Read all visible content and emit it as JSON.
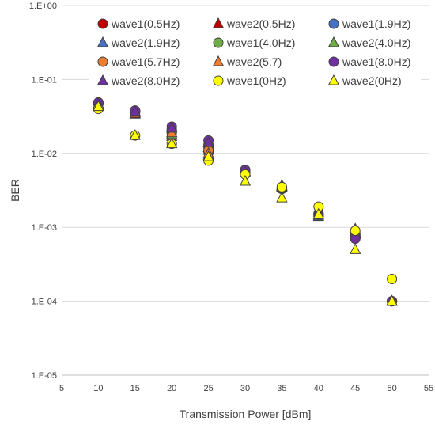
{
  "chart_data": {
    "type": "scatter",
    "title": "",
    "xlabel": "Transmission Power [dBm]",
    "ylabel": "BER",
    "xlim": [
      5,
      55
    ],
    "xticks": [
      5,
      10,
      15,
      20,
      25,
      30,
      35,
      40,
      45,
      50,
      55
    ],
    "ylim": [
      1e-05,
      1
    ],
    "yscale": "log",
    "ytick_values": [
      1,
      0.1,
      0.01,
      0.001,
      0.0001,
      1e-05
    ],
    "ytick_labels": [
      "1.E+00",
      "1.E-01",
      "1.E-02",
      "1.E-03",
      "1.E-04",
      "1.E-05"
    ],
    "grid": {
      "horizontal": true,
      "vertical": false
    },
    "legend_position": "top",
    "series": [
      {
        "name": "wave1(0.5Hz)",
        "marker": "circle",
        "color": "#c00000",
        "x": [
          10,
          15,
          20,
          25,
          30,
          35,
          40,
          45,
          50
        ],
        "y": [
          0.048,
          0.036,
          0.021,
          0.0105,
          0.0058,
          0.0034,
          0.00155,
          0.00075,
          0.0001
        ]
      },
      {
        "name": "wave2(0.5Hz)",
        "marker": "triangle",
        "color": "#c00000",
        "x": [
          10,
          15,
          20,
          25,
          30,
          35,
          40,
          45,
          50
        ],
        "y": [
          0.045,
          0.034,
          0.017,
          0.0095,
          0.0055,
          0.0036,
          0.0015,
          0.0008,
          0.0001
        ]
      },
      {
        "name": "wave1(1.9Hz)",
        "marker": "circle",
        "color": "#4472c4",
        "x": [
          10,
          15,
          20,
          25,
          30,
          35,
          40,
          45,
          50
        ],
        "y": [
          0.047,
          0.037,
          0.02,
          0.012,
          0.0057,
          0.0033,
          0.0015,
          0.0008,
          0.0001
        ]
      },
      {
        "name": "wave2(1.9Hz)",
        "marker": "triangle",
        "color": "#4472c4",
        "x": [
          10,
          15,
          20,
          25,
          30,
          35,
          40,
          45,
          50
        ],
        "y": [
          0.046,
          0.036,
          0.019,
          0.011,
          0.0056,
          0.0035,
          0.0014,
          0.00085,
          0.0001
        ]
      },
      {
        "name": "wave1(4.0Hz)",
        "marker": "circle",
        "color": "#70ad47",
        "x": [
          10,
          15,
          20,
          25,
          30,
          35,
          40,
          45,
          50
        ],
        "y": [
          0.047,
          0.037,
          0.019,
          0.013,
          0.0058,
          0.0034,
          0.0015,
          0.00078,
          0.0001
        ]
      },
      {
        "name": "wave2(4.0Hz)",
        "marker": "triangle",
        "color": "#70ad47",
        "x": [
          10,
          15,
          20,
          25,
          30,
          35,
          40,
          45,
          50
        ],
        "y": [
          0.046,
          0.036,
          0.018,
          0.012,
          0.0056,
          0.0035,
          0.00145,
          0.00082,
          0.0001
        ]
      },
      {
        "name": "wave1(5.7Hz)",
        "marker": "circle",
        "color": "#ed7d31",
        "x": [
          10,
          15,
          20,
          25,
          30,
          35,
          40,
          45,
          50
        ],
        "y": [
          0.048,
          0.037,
          0.02,
          0.011,
          0.0057,
          0.0034,
          0.0015,
          0.0008,
          0.0001
        ]
      },
      {
        "name": "wave2(5.7)",
        "marker": "triangle",
        "color": "#ed7d31",
        "x": [
          10,
          15,
          20,
          25,
          30,
          35,
          40,
          45,
          50
        ],
        "y": [
          0.046,
          0.035,
          0.019,
          0.01,
          0.0055,
          0.0036,
          0.0015,
          0.00085,
          0.0001
        ]
      },
      {
        "name": "wave1(8.0Hz)",
        "marker": "circle",
        "color": "#7030a0",
        "x": [
          10,
          15,
          20,
          25,
          30,
          35,
          40,
          45,
          50
        ],
        "y": [
          0.049,
          0.038,
          0.023,
          0.015,
          0.006,
          0.0035,
          0.0015,
          0.0007,
          0.0001
        ]
      },
      {
        "name": "wave2(8.0Hz)",
        "marker": "triangle",
        "color": "#7030a0",
        "x": [
          10,
          15,
          20,
          25,
          30,
          35,
          40,
          45,
          50
        ],
        "y": [
          0.047,
          0.037,
          0.022,
          0.014,
          0.0057,
          0.0037,
          0.0016,
          0.00095,
          0.0001
        ]
      },
      {
        "name": "wave1(0Hz)",
        "marker": "circle",
        "color": "#ffff00",
        "x": [
          10,
          15,
          20,
          25,
          30,
          35,
          40,
          45,
          50
        ],
        "y": [
          0.04,
          0.0175,
          0.0135,
          0.008,
          0.0052,
          0.0035,
          0.0019,
          0.0009,
          0.0002
        ]
      },
      {
        "name": "wave2(0Hz)",
        "marker": "triangle",
        "color": "#ffff00",
        "x": [
          10,
          15,
          20,
          25,
          30,
          35,
          40,
          45,
          50
        ],
        "y": [
          0.043,
          0.0175,
          0.0135,
          0.009,
          0.0042,
          0.0025,
          0.0015,
          0.0005,
          0.0001
        ]
      }
    ]
  }
}
